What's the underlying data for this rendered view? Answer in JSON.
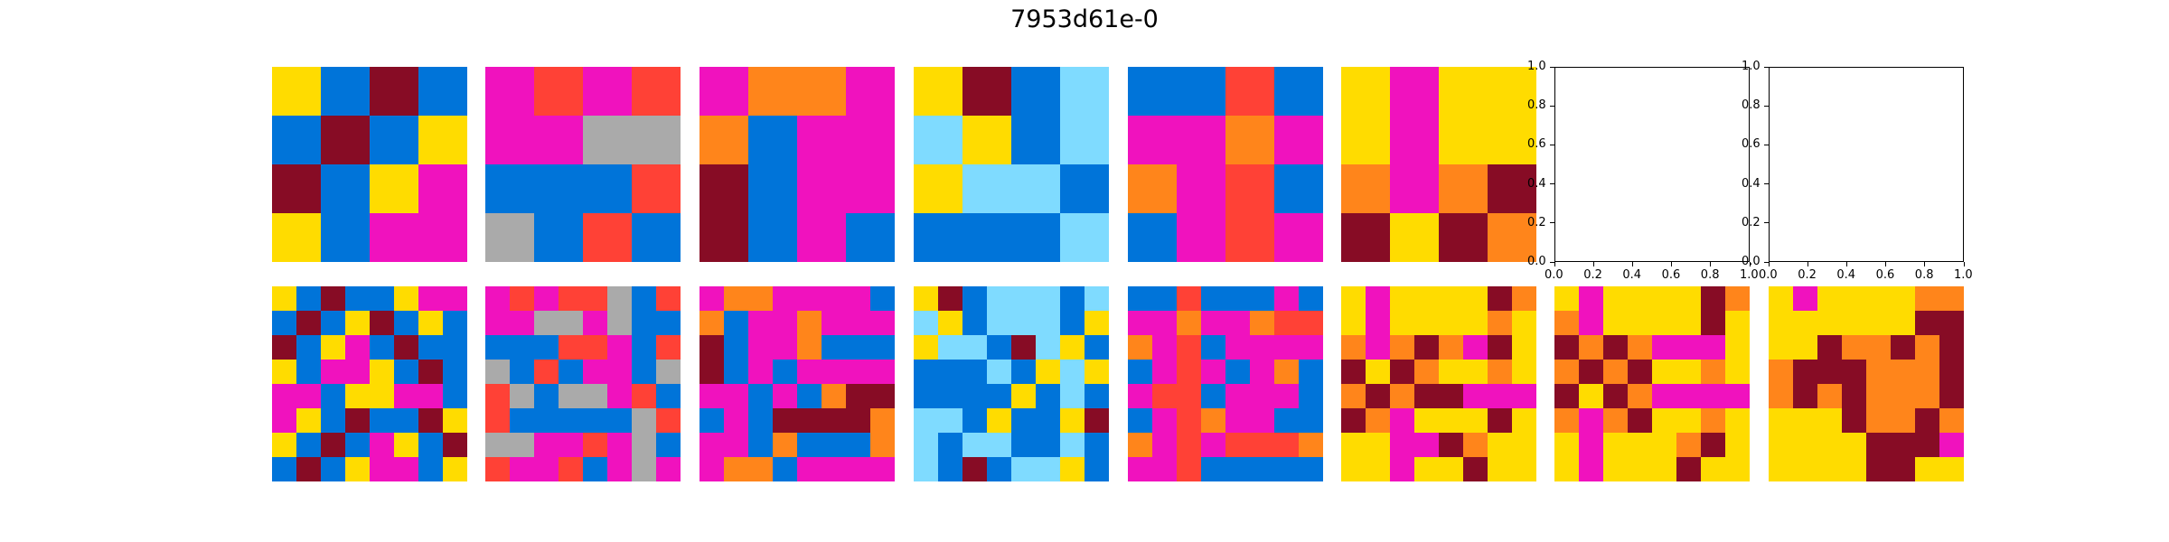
{
  "title": "7953d61e-0",
  "palette": {
    "0": "#000000",
    "1": "#0074D9",
    "2": "#FF4136",
    "3": "#2ECC40",
    "4": "#FFDC00",
    "5": "#AAAAAA",
    "6": "#F012BE",
    "7": "#FF851B",
    "8": "#7FDBFF",
    "9": "#870C25"
  },
  "top_row": [
    {
      "grid": [
        [
          4,
          1,
          9,
          1
        ],
        [
          1,
          9,
          1,
          4
        ],
        [
          9,
          1,
          4,
          6
        ],
        [
          4,
          1,
          6,
          6
        ]
      ]
    },
    {
      "grid": [
        [
          6,
          2,
          6,
          2
        ],
        [
          6,
          6,
          5,
          5
        ],
        [
          1,
          1,
          1,
          2
        ],
        [
          5,
          1,
          2,
          1
        ]
      ]
    },
    {
      "grid": [
        [
          6,
          7,
          7,
          6
        ],
        [
          7,
          1,
          6,
          6
        ],
        [
          9,
          1,
          6,
          6
        ],
        [
          9,
          1,
          6,
          1
        ]
      ]
    },
    {
      "grid": [
        [
          4,
          9,
          1,
          8
        ],
        [
          8,
          4,
          1,
          8
        ],
        [
          4,
          8,
          8,
          1
        ],
        [
          1,
          1,
          1,
          8
        ]
      ]
    },
    {
      "grid": [
        [
          1,
          1,
          2,
          1
        ],
        [
          6,
          6,
          7,
          6
        ],
        [
          7,
          6,
          2,
          1
        ],
        [
          1,
          6,
          2,
          6
        ]
      ]
    },
    {
      "grid": [
        [
          4,
          6,
          4,
          4
        ],
        [
          4,
          6,
          4,
          4
        ],
        [
          7,
          6,
          7,
          9
        ],
        [
          9,
          4,
          9,
          7
        ]
      ]
    },
    {
      "empty": true
    },
    {
      "empty": true
    }
  ],
  "bottom_row": [
    {
      "grid": [
        [
          4,
          1,
          9,
          1,
          1,
          4,
          6,
          6
        ],
        [
          1,
          9,
          1,
          4,
          9,
          1,
          4,
          1
        ],
        [
          9,
          1,
          4,
          6,
          1,
          9,
          1,
          1
        ],
        [
          4,
          1,
          6,
          6,
          4,
          1,
          9,
          1
        ],
        [
          6,
          6,
          1,
          4,
          4,
          6,
          6,
          1
        ],
        [
          6,
          4,
          1,
          9,
          1,
          1,
          9,
          4
        ],
        [
          4,
          1,
          9,
          1,
          6,
          4,
          1,
          9
        ],
        [
          1,
          9,
          1,
          4,
          6,
          6,
          1,
          4
        ]
      ]
    },
    {
      "grid": [
        [
          6,
          2,
          6,
          2,
          2,
          5,
          1,
          2
        ],
        [
          6,
          6,
          5,
          5,
          6,
          5,
          1,
          1
        ],
        [
          1,
          1,
          1,
          2,
          2,
          6,
          1,
          2
        ],
        [
          5,
          1,
          2,
          1,
          6,
          6,
          1,
          5
        ],
        [
          2,
          5,
          1,
          5,
          5,
          6,
          2,
          1
        ],
        [
          2,
          1,
          1,
          1,
          1,
          1,
          5,
          2
        ],
        [
          5,
          5,
          6,
          6,
          2,
          6,
          5,
          1
        ],
        [
          2,
          6,
          6,
          2,
          1,
          6,
          5,
          6
        ]
      ]
    },
    {
      "grid": [
        [
          6,
          7,
          7,
          6,
          6,
          6,
          6,
          1
        ],
        [
          7,
          1,
          6,
          6,
          7,
          6,
          6,
          6
        ],
        [
          9,
          1,
          6,
          6,
          7,
          1,
          1,
          1
        ],
        [
          9,
          1,
          6,
          1,
          6,
          6,
          6,
          6
        ],
        [
          6,
          6,
          1,
          6,
          1,
          7,
          9,
          9
        ],
        [
          1,
          6,
          1,
          9,
          9,
          9,
          9,
          7
        ],
        [
          6,
          6,
          1,
          7,
          1,
          1,
          1,
          7
        ],
        [
          6,
          7,
          7,
          1,
          6,
          6,
          6,
          6
        ]
      ]
    },
    {
      "grid": [
        [
          4,
          9,
          1,
          8,
          8,
          8,
          1,
          8
        ],
        [
          8,
          4,
          1,
          8,
          8,
          8,
          1,
          4
        ],
        [
          4,
          8,
          8,
          1,
          9,
          8,
          4,
          1
        ],
        [
          1,
          1,
          1,
          8,
          1,
          4,
          8,
          4
        ],
        [
          1,
          1,
          1,
          1,
          4,
          1,
          8,
          1
        ],
        [
          8,
          8,
          1,
          4,
          1,
          1,
          4,
          9
        ],
        [
          8,
          1,
          8,
          8,
          1,
          1,
          8,
          1
        ],
        [
          8,
          1,
          9,
          1,
          8,
          8,
          4,
          1
        ]
      ]
    },
    {
      "grid": [
        [
          1,
          1,
          2,
          1,
          1,
          1,
          6,
          1
        ],
        [
          6,
          6,
          7,
          6,
          6,
          7,
          2,
          2
        ],
        [
          7,
          6,
          2,
          1,
          6,
          6,
          6,
          6
        ],
        [
          1,
          6,
          2,
          6,
          1,
          6,
          7,
          1
        ],
        [
          6,
          2,
          2,
          1,
          6,
          6,
          6,
          1
        ],
        [
          1,
          6,
          2,
          7,
          6,
          6,
          1,
          1
        ],
        [
          7,
          6,
          2,
          6,
          2,
          2,
          2,
          7
        ],
        [
          6,
          6,
          2,
          1,
          1,
          1,
          1,
          1
        ]
      ]
    },
    {
      "grid": [
        [
          4,
          6,
          4,
          4,
          4,
          4,
          9,
          7
        ],
        [
          4,
          6,
          4,
          4,
          4,
          4,
          7,
          4
        ],
        [
          7,
          6,
          7,
          9,
          7,
          6,
          9,
          4
        ],
        [
          9,
          4,
          9,
          7,
          4,
          4,
          7,
          4
        ],
        [
          7,
          9,
          7,
          9,
          9,
          6,
          6,
          6
        ],
        [
          9,
          7,
          6,
          4,
          4,
          4,
          9,
          4
        ],
        [
          4,
          4,
          6,
          6,
          9,
          7,
          4,
          4
        ],
        [
          4,
          4,
          6,
          4,
          4,
          9,
          4,
          4
        ]
      ]
    },
    {
      "grid": [
        [
          4,
          6,
          4,
          4,
          4,
          4,
          9,
          7
        ],
        [
          7,
          6,
          4,
          4,
          4,
          4,
          9,
          4
        ],
        [
          9,
          7,
          9,
          7,
          6,
          6,
          6,
          4
        ],
        [
          7,
          9,
          7,
          9,
          4,
          4,
          7,
          4
        ],
        [
          9,
          4,
          9,
          7,
          6,
          6,
          6,
          6
        ],
        [
          7,
          6,
          7,
          9,
          4,
          4,
          7,
          4
        ],
        [
          4,
          6,
          4,
          4,
          4,
          7,
          9,
          4
        ],
        [
          4,
          6,
          4,
          4,
          4,
          9,
          4,
          4
        ]
      ]
    },
    {
      "grid": [
        [
          4,
          6,
          4,
          4,
          4,
          4,
          7,
          7
        ],
        [
          4,
          4,
          4,
          4,
          4,
          4,
          9,
          9
        ],
        [
          4,
          4,
          9,
          7,
          7,
          9,
          7,
          9
        ],
        [
          7,
          9,
          9,
          9,
          7,
          7,
          7,
          9
        ],
        [
          7,
          9,
          7,
          9,
          7,
          7,
          7,
          9
        ],
        [
          4,
          4,
          4,
          9,
          7,
          7,
          9,
          7
        ],
        [
          4,
          4,
          4,
          4,
          9,
          9,
          9,
          6
        ],
        [
          4,
          4,
          4,
          4,
          9,
          9,
          4,
          4
        ]
      ]
    }
  ],
  "empty_axes": {
    "ticks": [
      "0.0",
      "0.2",
      "0.4",
      "0.6",
      "0.8",
      "1.0"
    ]
  }
}
